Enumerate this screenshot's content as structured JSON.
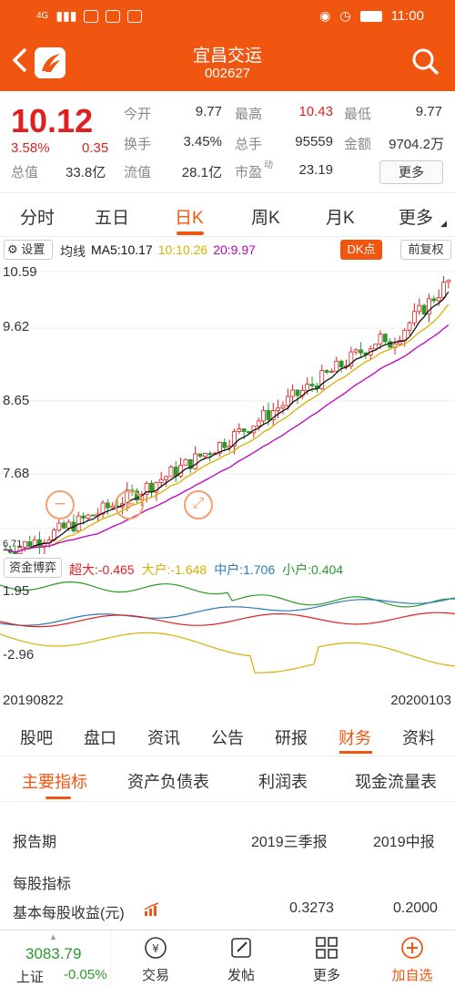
{
  "status_bar": {
    "network": "4G",
    "time": "11:00"
  },
  "header": {
    "title": "宜昌交运",
    "code": "002627",
    "back_icon": "back-arrow-icon",
    "search_icon": "search-icon",
    "accent_color": "#f0560f"
  },
  "quote": {
    "price": "10.12",
    "change_pct": "3.58%",
    "change": "0.35",
    "market_cap_label": "总值",
    "market_cap": "33.8亿",
    "rows": [
      [
        {
          "label": "今开",
          "value": "9.77"
        },
        {
          "label": "最高",
          "value": "10.43"
        },
        {
          "label": "最低",
          "value": "9.77"
        }
      ],
      [
        {
          "label": "换手",
          "value": "3.45%"
        },
        {
          "label": "总手",
          "value": "95559"
        },
        {
          "label": "金额",
          "value": "9704.2万"
        }
      ],
      [
        {
          "label": "流值",
          "value": "28.1亿"
        },
        {
          "label": "市盈",
          "value": "23.19",
          "sup": "动"
        }
      ]
    ],
    "more_label": "更多"
  },
  "kline_tabs": [
    "分时",
    "五日",
    "日K",
    "周K",
    "月K",
    "更多"
  ],
  "kline_active": "日K",
  "ma_toolbar": {
    "settings_label": "设置",
    "ma_label": "均线",
    "ma5": "MA5:10.17",
    "ma10": "10:10.26",
    "ma20": "20:9.97",
    "dk_label": "DK点",
    "adjust_label": "前复权"
  },
  "kchart": {
    "y_labels": [
      "10.59",
      "9.62",
      "8.65",
      "7.68",
      "6.71"
    ]
  },
  "fund_flow": {
    "label": "资金博弈",
    "super_large": "超大:-0.465",
    "large": "大户:-1.648",
    "medium": "中户:1.706",
    "small": "小户:0.404",
    "y_top": "1.95",
    "y_bottom": "-2.96",
    "start_date": "20190822",
    "end_date": "20200103"
  },
  "info_tabs": [
    "股吧",
    "盘口",
    "资讯",
    "公告",
    "研报",
    "财务",
    "资料"
  ],
  "info_active": "财务",
  "fin_subtabs": [
    "主要指标",
    "资产负债表",
    "利润表",
    "现金流量表"
  ],
  "fin_active": "主要指标",
  "financials": {
    "period_label": "报告期",
    "col1": "2019三季报",
    "col2": "2019中报",
    "section": "每股指标",
    "eps_label": "基本每股收益(元)",
    "eps1": "0.3273",
    "eps2": "0.2000"
  },
  "bottom_nav": {
    "index_value": "3083.79",
    "index_name": "上证",
    "index_change": "-0.05%",
    "items": [
      {
        "label": "交易",
        "icon": "trade-icon"
      },
      {
        "label": "发帖",
        "icon": "edit-icon"
      },
      {
        "label": "更多",
        "icon": "grid-icon"
      },
      {
        "label": "加自选",
        "icon": "add-circle-icon"
      }
    ]
  }
}
